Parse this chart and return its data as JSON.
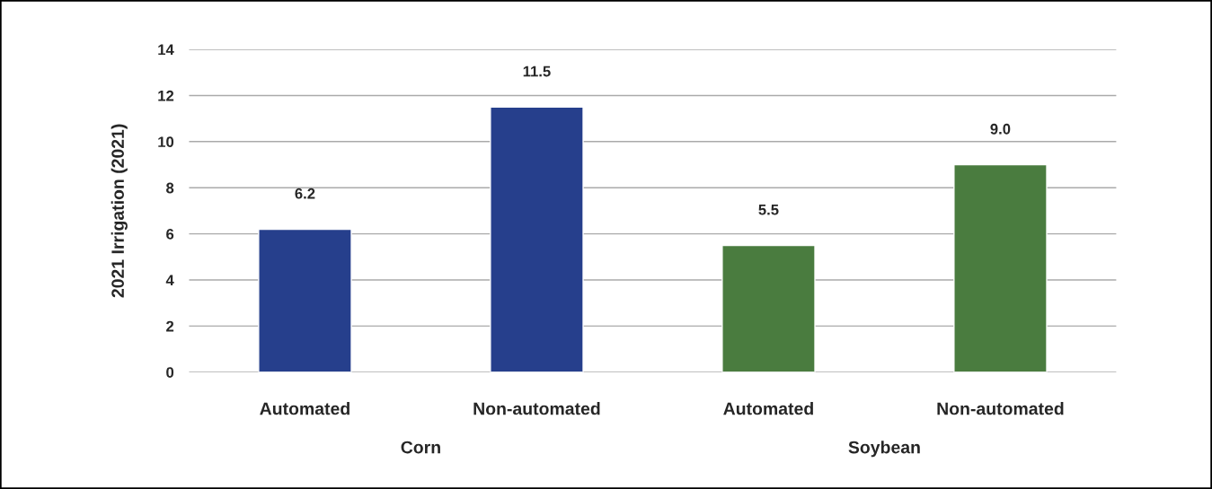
{
  "chart_data": {
    "type": "bar",
    "ylabel": "2021 Irrigation (2021)",
    "categories": [
      "Automated",
      "Non-automated",
      "Automated",
      "Non-automated"
    ],
    "values": [
      6.2,
      11.5,
      5.5,
      9.0
    ],
    "colors": [
      "#263f8c",
      "#263f8c",
      "#4a7c3f",
      "#4a7c3f"
    ],
    "value_labels": [
      "6.2",
      "11.5",
      "5.5",
      "9.0"
    ],
    "annotations": [
      "Corn",
      "Soybean"
    ],
    "ylim": [
      0,
      14
    ],
    "yticks": [
      0,
      2,
      4,
      6,
      8,
      10,
      12,
      14
    ],
    "grid": "y"
  }
}
